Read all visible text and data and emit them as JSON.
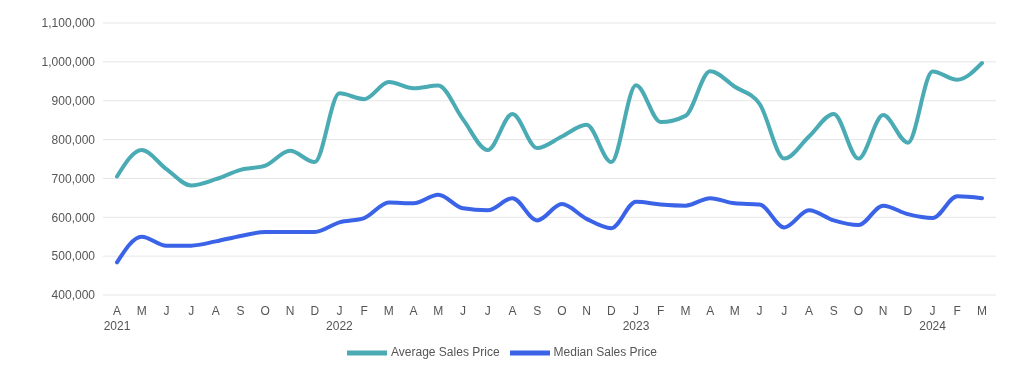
{
  "chart_data": {
    "type": "line",
    "categories": [
      "A\n2021",
      "M",
      "J",
      "J",
      "A",
      "S",
      "O",
      "N",
      "D",
      "J\n2022",
      "F",
      "M",
      "A",
      "M",
      "J",
      "J",
      "A",
      "S",
      "O",
      "N",
      "D",
      "J\n2023",
      "F",
      "M",
      "A",
      "M",
      "J",
      "J",
      "A",
      "S",
      "O",
      "N",
      "D",
      "J\n2024",
      "F",
      "M"
    ],
    "series": [
      {
        "name": "Median Sales Price",
        "color": "#3b63e8",
        "values": [
          484000,
          550000,
          527000,
          527000,
          538000,
          552000,
          562000,
          562000,
          562000,
          587000,
          598000,
          638000,
          636000,
          658000,
          623000,
          618000,
          649000,
          592000,
          634000,
          596000,
          572000,
          640000,
          633000,
          630000,
          649000,
          636000,
          633000,
          574000,
          618000,
          592000,
          580000,
          630000,
          608000,
          598000,
          654000,
          649000
        ]
      },
      {
        "name": "Average Sales Price",
        "color": "#4aabb4",
        "values": [
          705000,
          773000,
          724000,
          682000,
          698000,
          722000,
          733000,
          771000,
          742000,
          919000,
          904000,
          948000,
          932000,
          939000,
          852000,
          773000,
          866000,
          778000,
          808000,
          838000,
          742000,
          940000,
          845000,
          861000,
          976000,
          936000,
          892000,
          751000,
          808000,
          866000,
          751000,
          863000,
          792000,
          975000,
          954000,
          997000
        ]
      }
    ],
    "ylim": [
      400000,
      1100000
    ],
    "yticks": [
      {
        "value": 400000,
        "label": "400,000"
      },
      {
        "value": 500000,
        "label": "500,000"
      },
      {
        "value": 600000,
        "label": "600,000"
      },
      {
        "value": 700000,
        "label": "700,000"
      },
      {
        "value": 800000,
        "label": "800,000"
      },
      {
        "value": 900000,
        "label": "900,000"
      },
      {
        "value": 1000000,
        "label": "1,000,000"
      },
      {
        "value": 1100000,
        "label": "1,100,000"
      }
    ],
    "grid": "y",
    "legend": "bottom",
    "line_style": "solid"
  }
}
